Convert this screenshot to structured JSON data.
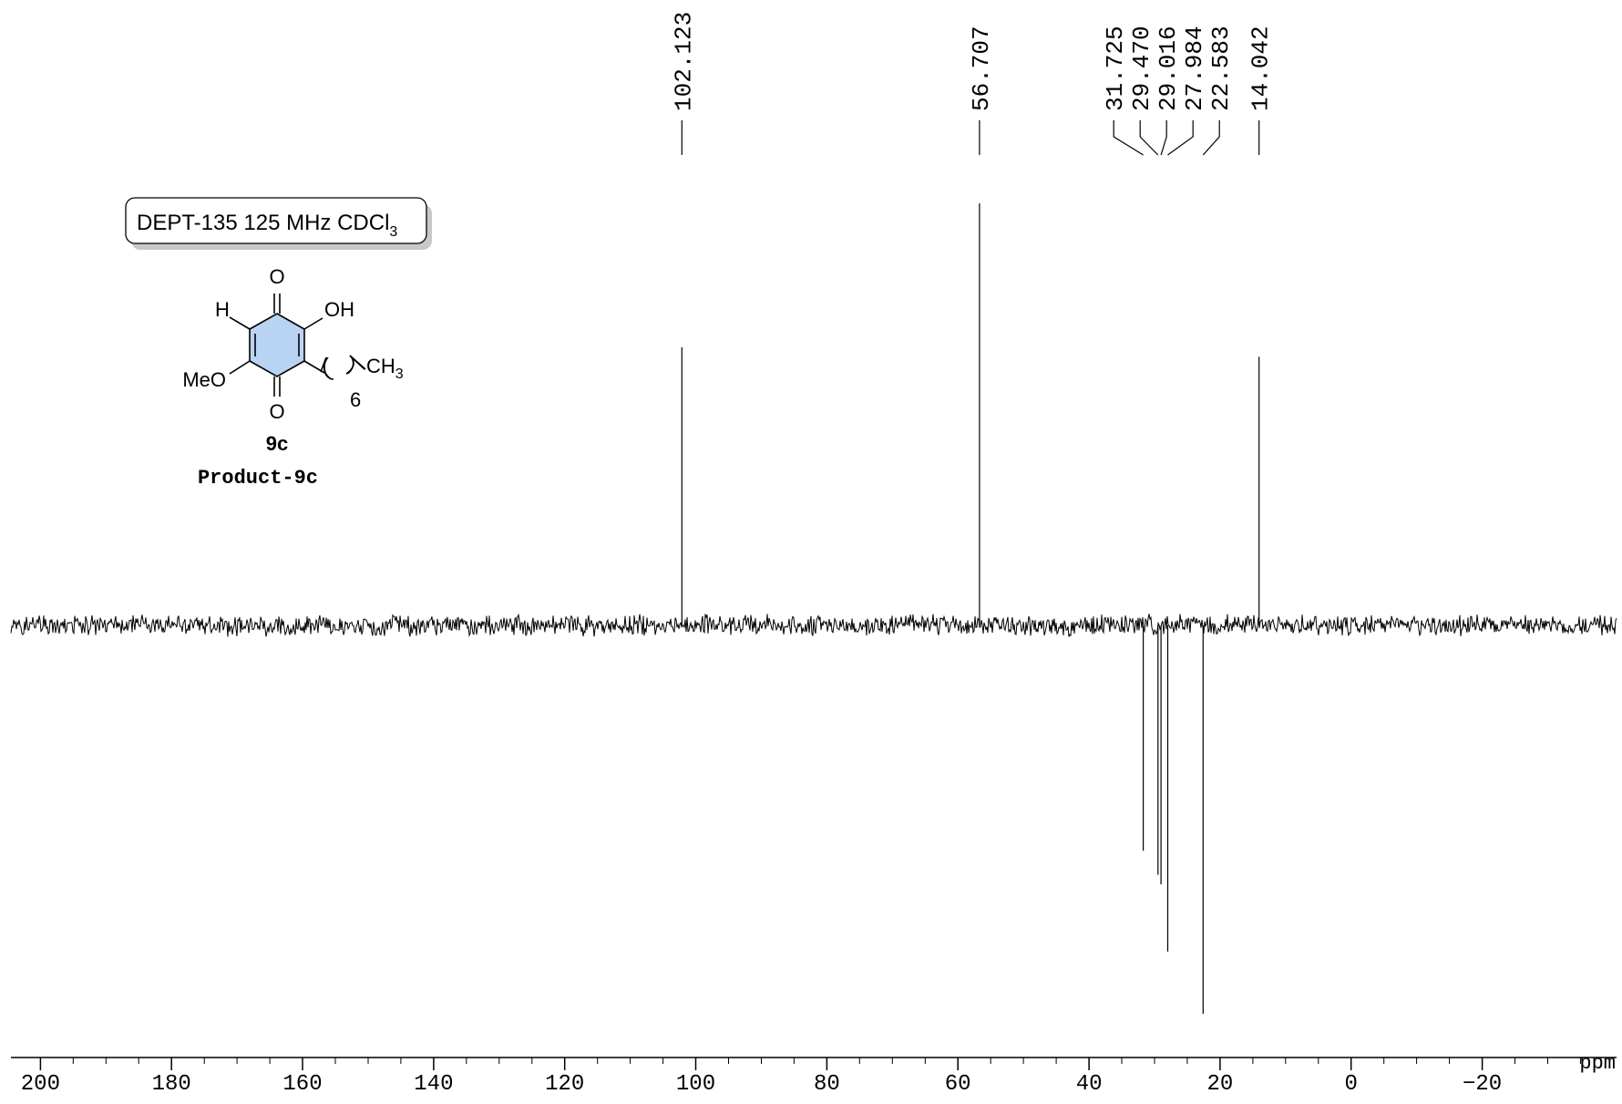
{
  "chart_data": {
    "type": "line",
    "title": "",
    "xlabel": "ppm",
    "ylabel": "",
    "xlim": [
      204.5,
      -40.5
    ],
    "x_reversed": true,
    "grid": false,
    "x_ticks": [
      200,
      180,
      160,
      140,
      120,
      100,
      80,
      60,
      40,
      20,
      0,
      -20
    ],
    "x_tick_labels": [
      "200",
      "180",
      "160",
      "140",
      "120",
      "100",
      "80",
      "60",
      "40",
      "20",
      "0",
      "−20"
    ],
    "minor_tick_step": 5,
    "peak_labels": [
      "102.123",
      "56.707",
      "31.725",
      "29.470",
      "29.016",
      "27.984",
      "22.583",
      "14.042"
    ],
    "peaks": [
      {
        "ppm": 102.123,
        "intensity": 0.58
      },
      {
        "ppm": 56.707,
        "intensity": 0.88
      },
      {
        "ppm": 31.725,
        "intensity": -0.47
      },
      {
        "ppm": 29.47,
        "intensity": -0.52
      },
      {
        "ppm": 29.016,
        "intensity": -0.54
      },
      {
        "ppm": 27.984,
        "intensity": -0.68
      },
      {
        "ppm": 22.583,
        "intensity": -0.81
      },
      {
        "ppm": 14.042,
        "intensity": 0.56
      }
    ],
    "noise_level": 0.018
  },
  "info_box": {
    "text": "DEPT-135 125 MHz CDCl",
    "subscript": "3"
  },
  "structure": {
    "o_top": "O",
    "o_bottom": "O",
    "h": "H",
    "oh": "OH",
    "meo": "MeO",
    "ch3": "CH",
    "ch3_sub": "3",
    "chain_n": "6",
    "compound_id": "9c",
    "product_name": "Product-9c",
    "ring_fill": "#b9d3f3"
  },
  "colors": {
    "spectrum": "#000000",
    "background": "#ffffff"
  }
}
